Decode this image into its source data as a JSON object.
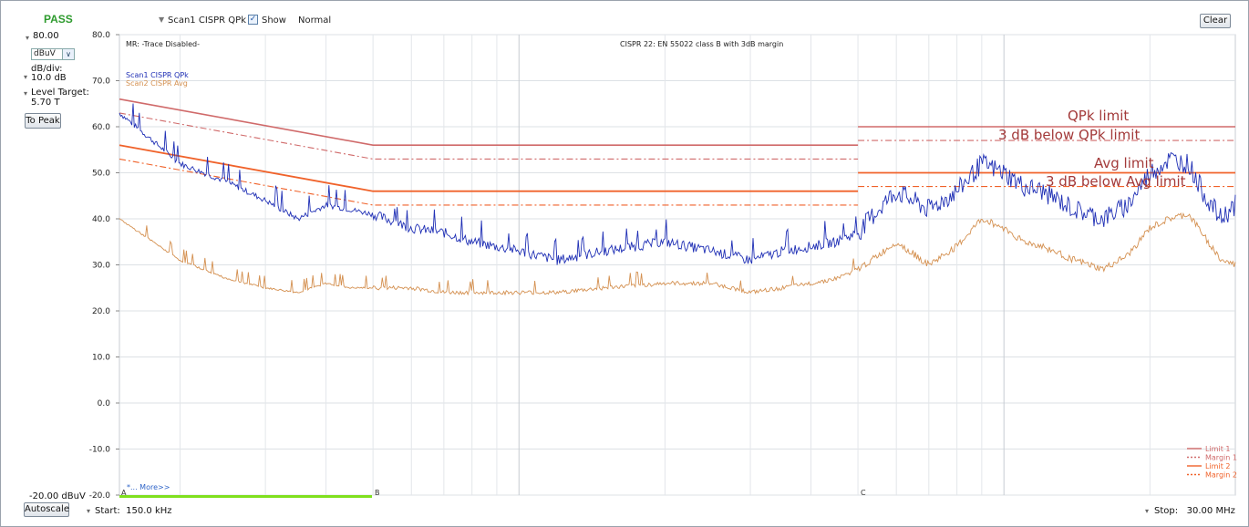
{
  "status": "PASS",
  "header": {
    "trace_selector": "Scan1 CISPR QPk",
    "show_label": "Show",
    "mode": "Normal",
    "clear_button": "Clear"
  },
  "sidebar": {
    "ref_level": "80.00",
    "unit": "dBuV",
    "db_div_label": "dB/div:",
    "db_div_value": "10.0 dB",
    "level_target_label": "Level Target:",
    "level_target_value": "5.70 T",
    "to_peak_button": "To Peak",
    "bottom_level": "-20.00 dBuV",
    "autoscale_button": "Autoscale"
  },
  "footer": {
    "start": "Start:  150.0 kHz",
    "stop": "Stop:   30.00 MHz"
  },
  "plot": {
    "mr_text": "MR: -Trace Disabled-",
    "title": "CISPR 22: EN 55022 class B with 3dB margin",
    "trace_legend": [
      "Scan1 CISPR QPk",
      "Scan2 CISPR Avg"
    ],
    "markers": [
      "A",
      "B",
      "C"
    ],
    "more_link": "*... More>>",
    "limit_legend": [
      "Limit 1",
      "Margin 1",
      "Limit 2",
      "Margin 2"
    ],
    "annotations": [
      "QPk limit",
      "3 dB below QPk limit",
      "Avg limit",
      "3 dB below Avg limit"
    ]
  },
  "colors": {
    "qpk": "#1f2fb5",
    "avg": "#d49050",
    "limit1": "#d06a6a",
    "limit2": "#f0622a",
    "annotation": "#a33a3a",
    "pass": "#2e9b2e",
    "highlight": "#7fe01e"
  },
  "chart_data": {
    "type": "line",
    "xlabel": "",
    "ylabel": "",
    "x_scale": "log",
    "xlim_mhz": [
      0.15,
      30
    ],
    "ylim": [
      -20,
      80
    ],
    "y_ticks": [
      "80.0",
      "70.0",
      "60.0",
      "50.0",
      "40.0",
      "30.0",
      "20.0",
      "10.0",
      "0.0",
      "-10.0",
      "-20.0"
    ],
    "limits": [
      {
        "name": "Limit 1",
        "x_mhz": [
          0.15,
          0.5,
          0.5,
          5,
          5,
          30
        ],
        "y": [
          66,
          56,
          56,
          56,
          60,
          60
        ]
      },
      {
        "name": "Margin 1",
        "x_mhz": [
          0.15,
          0.5,
          0.5,
          5,
          5,
          30
        ],
        "y": [
          63,
          53,
          53,
          53,
          57,
          57
        ]
      },
      {
        "name": "Limit 2",
        "x_mhz": [
          0.15,
          0.5,
          0.5,
          5,
          5,
          30
        ],
        "y": [
          56,
          46,
          46,
          46,
          50,
          50
        ]
      },
      {
        "name": "Margin 2",
        "x_mhz": [
          0.15,
          0.5,
          0.5,
          5,
          5,
          30
        ],
        "y": [
          53,
          43,
          43,
          43,
          47,
          47
        ]
      }
    ],
    "series": [
      {
        "name": "Scan1 CISPR QPk",
        "x_mhz": [
          0.15,
          0.2,
          0.25,
          0.3,
          0.35,
          0.4,
          0.45,
          0.5,
          0.6,
          0.7,
          0.8,
          1.0,
          1.2,
          1.5,
          2.0,
          2.5,
          3.0,
          3.5,
          4.0,
          4.5,
          5.0,
          5.5,
          6.0,
          7.0,
          8.0,
          9.0,
          10.0,
          11.0,
          12.0,
          14.0,
          16.0,
          18.0,
          20.0,
          22.0,
          24.0,
          26.0,
          28.0,
          30.0
        ],
        "y": [
          63,
          52,
          48,
          44,
          40,
          43,
          42,
          41,
          38,
          37,
          35,
          33,
          31,
          33,
          35,
          33,
          31,
          33,
          34,
          35,
          37,
          42,
          46,
          42,
          46,
          52,
          50,
          47,
          46,
          42,
          40,
          43,
          50,
          53,
          52,
          45,
          40,
          43
        ]
      },
      {
        "name": "Scan2 CISPR Avg",
        "x_mhz": [
          0.15,
          0.2,
          0.25,
          0.3,
          0.35,
          0.4,
          0.45,
          0.5,
          0.6,
          0.7,
          0.8,
          1.0,
          1.2,
          1.5,
          2.0,
          2.5,
          3.0,
          3.5,
          4.0,
          4.5,
          5.0,
          5.5,
          6.0,
          7.0,
          8.0,
          9.0,
          10.0,
          11.0,
          12.0,
          14.0,
          16.0,
          18.0,
          20.0,
          22.0,
          24.0,
          26.0,
          28.0,
          30.0
        ],
        "y": [
          40,
          31,
          27,
          25,
          24,
          26,
          25,
          25,
          25,
          24,
          24,
          24,
          24,
          25,
          26,
          26,
          24,
          25,
          26,
          27,
          29,
          32,
          35,
          30,
          34,
          40,
          38,
          35,
          34,
          31,
          29,
          32,
          38,
          40,
          41,
          36,
          31,
          30
        ]
      }
    ]
  }
}
